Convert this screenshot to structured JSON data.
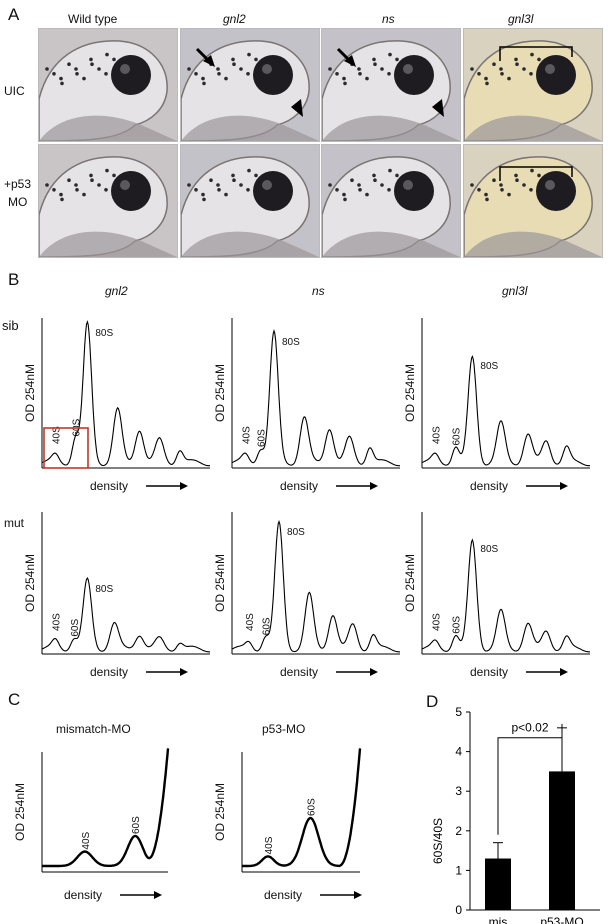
{
  "panelA": {
    "letter": "A",
    "columns": [
      "Wild type",
      "gnl2",
      "ns",
      "gnl3l"
    ],
    "rows": [
      "UIC",
      "+p53",
      "MO"
    ]
  },
  "panelB": {
    "letter": "B",
    "columns": [
      "gnl2",
      "ns",
      "gnl3l"
    ],
    "rows": [
      "sib",
      "mut"
    ],
    "ylabel": "OD 254nM",
    "xlabel": "density",
    "peaks": [
      "40S",
      "60S",
      "80S"
    ]
  },
  "panelC": {
    "letter": "C",
    "titles": [
      "mismatch-MO",
      "p53-MO"
    ],
    "ylabel": "OD 254nM",
    "xlabel": "density",
    "peaks": [
      "40S",
      "60S"
    ]
  },
  "chart_data": {
    "type": "bar",
    "panel": "D",
    "categories": [
      "mis",
      "p53-MO"
    ],
    "values": [
      1.3,
      3.5
    ],
    "errors": [
      0.4,
      1.1
    ],
    "ylabel": "60S/40S",
    "ylim": [
      0,
      5
    ],
    "yticks": [
      "0",
      "1",
      "2",
      "3",
      "4",
      "5"
    ],
    "annotation": "p<0.02",
    "bar_color": "#000000"
  }
}
